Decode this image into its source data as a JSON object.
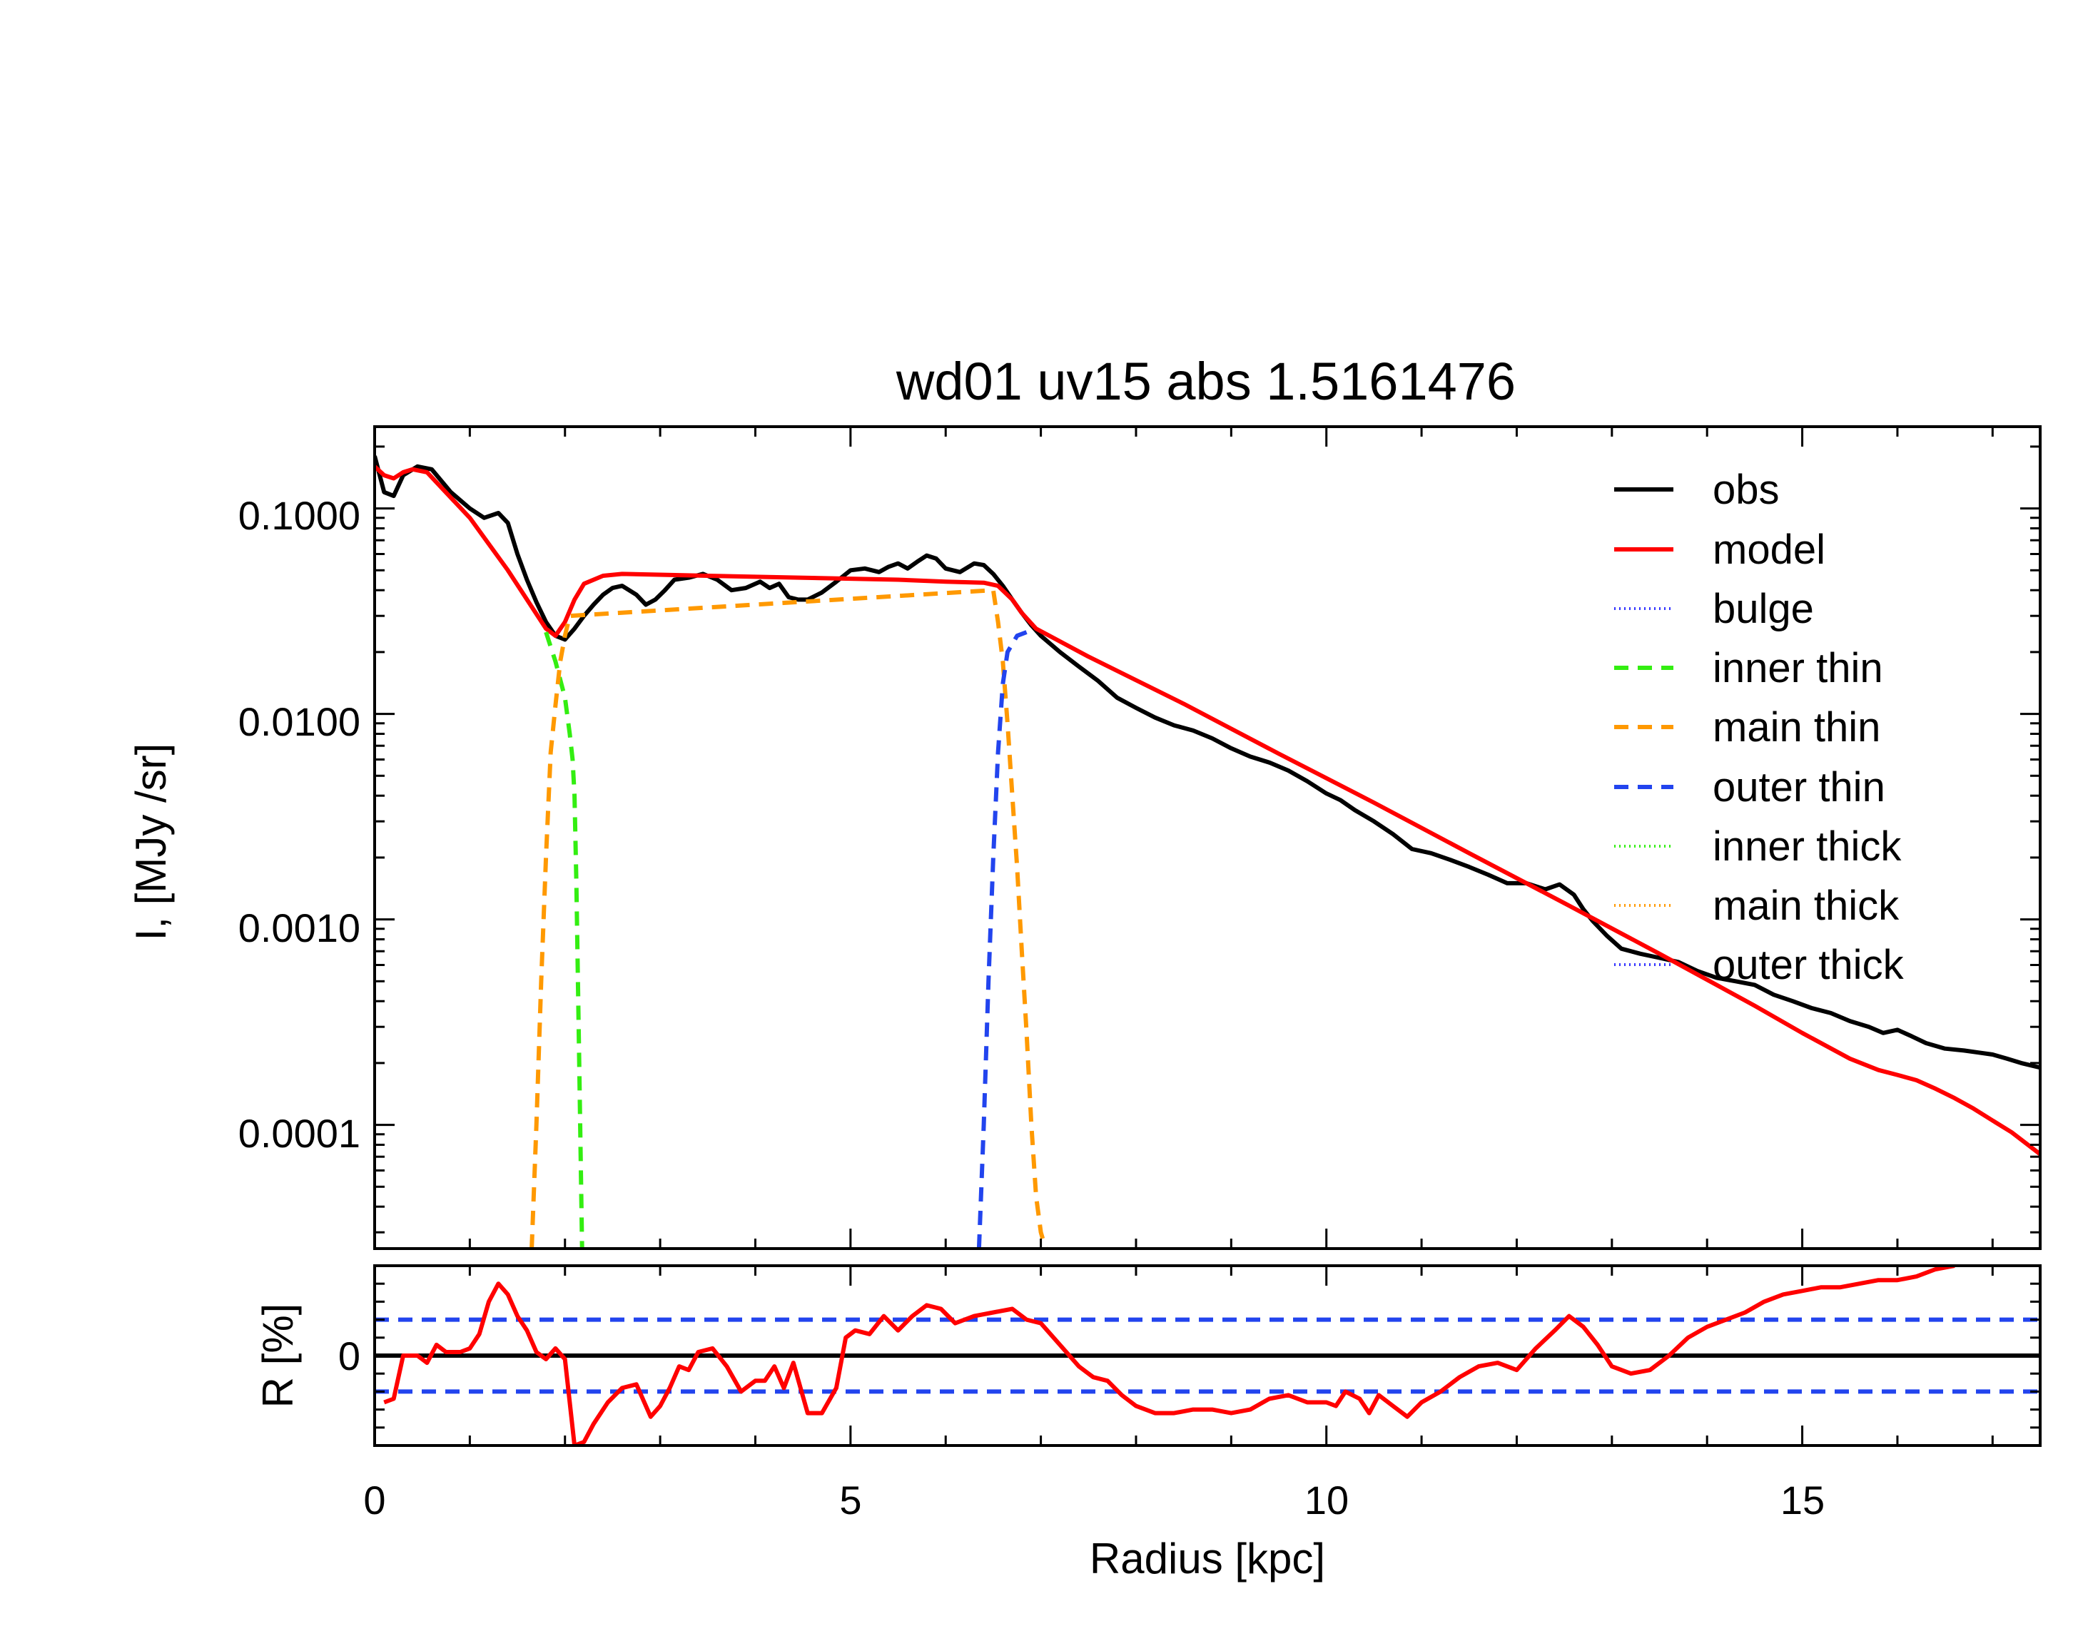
{
  "chart_data": [
    {
      "type": "line",
      "title": "wd01 uv15 abs 1.5161476",
      "xlabel": "",
      "ylabel": "I, [MJy /sr]",
      "xlim": [
        0,
        17.5
      ],
      "ylim": [
        2.5e-05,
        0.25
      ],
      "y_scale": "log",
      "x_ticks": [
        0,
        5,
        10,
        15
      ],
      "y_ticks": [
        0.0001,
        0.001,
        0.01,
        0.1
      ],
      "y_tick_labels": [
        "0.0001",
        "0.0010",
        "0.0100",
        "0.1000"
      ],
      "legend_position": "top-right",
      "grid": false,
      "series": [
        {
          "name": "obs",
          "color": "#000000",
          "style": "solid",
          "x": [
            0,
            0.1,
            0.2,
            0.3,
            0.45,
            0.6,
            0.8,
            1.0,
            1.15,
            1.3,
            1.4,
            1.5,
            1.6,
            1.7,
            1.8,
            1.9,
            2.0,
            2.1,
            2.2,
            2.3,
            2.4,
            2.5,
            2.6,
            2.75,
            2.85,
            2.95,
            3.05,
            3.15,
            3.3,
            3.45,
            3.6,
            3.75,
            3.9,
            4.05,
            4.15,
            4.25,
            4.35,
            4.45,
            4.55,
            4.7,
            4.85,
            5.0,
            5.15,
            5.3,
            5.4,
            5.5,
            5.6,
            5.7,
            5.8,
            5.9,
            6.0,
            6.15,
            6.3,
            6.4,
            6.5,
            6.6,
            6.7,
            6.8,
            6.9,
            7.0,
            7.2,
            7.4,
            7.6,
            7.8,
            8.0,
            8.2,
            8.4,
            8.6,
            8.8,
            9.0,
            9.2,
            9.4,
            9.6,
            9.8,
            10.0,
            10.15,
            10.3,
            10.5,
            10.7,
            10.9,
            11.1,
            11.3,
            11.5,
            11.7,
            11.9,
            12.1,
            12.3,
            12.45,
            12.6,
            12.7,
            12.8,
            12.95,
            13.1,
            13.3,
            13.5,
            13.7,
            13.9,
            14.1,
            14.3,
            14.5,
            14.7,
            14.9,
            15.1,
            15.3,
            15.5,
            15.7,
            15.85,
            16.0,
            16.15,
            16.3,
            16.5,
            16.7,
            16.85,
            17.0,
            17.15,
            17.3,
            17.5
          ],
          "y": [
            0.18,
            0.12,
            0.115,
            0.145,
            0.16,
            0.155,
            0.12,
            0.1,
            0.09,
            0.095,
            0.085,
            0.06,
            0.045,
            0.035,
            0.028,
            0.024,
            0.023,
            0.026,
            0.03,
            0.034,
            0.038,
            0.041,
            0.042,
            0.038,
            0.034,
            0.036,
            0.04,
            0.045,
            0.046,
            0.048,
            0.045,
            0.04,
            0.041,
            0.044,
            0.041,
            0.043,
            0.037,
            0.036,
            0.036,
            0.039,
            0.044,
            0.05,
            0.051,
            0.049,
            0.052,
            0.054,
            0.051,
            0.055,
            0.059,
            0.057,
            0.051,
            0.049,
            0.054,
            0.053,
            0.048,
            0.042,
            0.036,
            0.031,
            0.027,
            0.024,
            0.02,
            0.017,
            0.0145,
            0.012,
            0.0107,
            0.0096,
            0.0088,
            0.0083,
            0.0076,
            0.0068,
            0.0062,
            0.0058,
            0.0053,
            0.0047,
            0.0041,
            0.0038,
            0.0034,
            0.003,
            0.0026,
            0.0022,
            0.0021,
            0.00195,
            0.0018,
            0.00165,
            0.0015,
            0.0015,
            0.0014,
            0.00148,
            0.00132,
            0.00112,
            0.00098,
            0.00083,
            0.00072,
            0.00068,
            0.00065,
            0.00062,
            0.00056,
            0.00052,
            0.0005,
            0.00048,
            0.00043,
            0.0004,
            0.00037,
            0.00035,
            0.00032,
            0.0003,
            0.00028,
            0.00029,
            0.00027,
            0.00025,
            0.000235,
            0.00023,
            0.000225,
            0.00022,
            0.00021,
            0.0002,
            0.00019
          ]
        },
        {
          "name": "model",
          "color": "#ff0000",
          "style": "solid",
          "x": [
            0,
            0.1,
            0.2,
            0.3,
            0.4,
            0.55,
            1.0,
            1.4,
            1.8,
            1.9,
            2.0,
            2.1,
            2.2,
            2.4,
            2.6,
            3.5,
            4.5,
            5.5,
            6.0,
            6.4,
            6.55,
            6.7,
            6.8,
            6.95,
            7.5,
            8.5,
            9.5,
            10.5,
            11.5,
            12.5,
            13.5,
            14.5,
            15.0,
            15.5,
            15.8,
            16.0,
            16.2,
            16.4,
            16.6,
            16.8,
            17.0,
            17.2,
            17.5
          ],
          "y": [
            0.16,
            0.145,
            0.14,
            0.15,
            0.155,
            0.15,
            0.09,
            0.05,
            0.026,
            0.024,
            0.028,
            0.036,
            0.043,
            0.047,
            0.048,
            0.047,
            0.046,
            0.045,
            0.044,
            0.0435,
            0.042,
            0.036,
            0.031,
            0.026,
            0.019,
            0.0112,
            0.0064,
            0.0037,
            0.0021,
            0.0012,
            0.00068,
            0.00038,
            0.00028,
            0.00021,
            0.000185,
            0.000175,
            0.000165,
            0.00015,
            0.000135,
            0.00012,
            0.000105,
            9.2e-05,
            7.2e-05
          ]
        },
        {
          "name": "bulge",
          "color": "#3333ff",
          "style": "dotted",
          "x": [],
          "y": []
        },
        {
          "name": "inner thin",
          "color": "#33ee11",
          "style": "dashed",
          "x": [
            1.8,
            1.9,
            2.0,
            2.05,
            2.08,
            2.1,
            2.12,
            2.15,
            2.18
          ],
          "y": [
            0.025,
            0.018,
            0.012,
            0.008,
            0.006,
            0.004,
            0.0015,
            0.0002,
            2.5e-05
          ]
        },
        {
          "name": "main thin",
          "color": "#ff9900",
          "style": "dashed",
          "x": [
            1.65,
            1.7,
            1.75,
            1.8,
            1.85,
            1.9,
            1.95,
            2.0,
            2.05,
            6.5,
            6.55,
            6.6,
            6.65,
            6.7,
            6.75,
            6.8,
            6.85,
            6.9,
            6.95,
            7.0,
            7.05
          ],
          "y": [
            2.5e-05,
            0.0001,
            0.0005,
            0.002,
            0.0065,
            0.011,
            0.018,
            0.024,
            0.03,
            0.04,
            0.028,
            0.018,
            0.009,
            0.004,
            0.0018,
            0.0007,
            0.00028,
            0.0001,
            4.5e-05,
            3e-05,
            2.5e-05
          ]
        },
        {
          "name": "outer thin",
          "color": "#2244ee",
          "style": "dashed",
          "x": [
            6.35,
            6.4,
            6.45,
            6.5,
            6.55,
            6.6,
            6.65,
            6.75,
            6.85
          ],
          "y": [
            2.5e-05,
            0.0001,
            0.0005,
            0.002,
            0.0065,
            0.014,
            0.02,
            0.024,
            0.025
          ]
        },
        {
          "name": "inner thick",
          "color": "#33ee11",
          "style": "dotted",
          "x": [],
          "y": []
        },
        {
          "name": "main thick",
          "color": "#ff9900",
          "style": "dotted",
          "x": [],
          "y": []
        },
        {
          "name": "outer thick",
          "color": "#3333ff",
          "style": "dotted",
          "x": [],
          "y": []
        }
      ]
    },
    {
      "type": "line",
      "title": "",
      "xlabel": "Radius  [kpc]",
      "ylabel": "R [%]",
      "xlim": [
        0,
        17.5
      ],
      "ylim": [
        -25,
        25
      ],
      "x_ticks": [
        0,
        5,
        10,
        15
      ],
      "x_tick_labels": [
        "0",
        "5",
        "10",
        "15"
      ],
      "y_ticks": [
        0
      ],
      "y_tick_labels": [
        "0"
      ],
      "grid": false,
      "reference_lines": [
        {
          "y": 0,
          "color": "#000000",
          "style": "solid"
        },
        {
          "y": 10,
          "color": "#2244ee",
          "style": "dashed"
        },
        {
          "y": -10,
          "color": "#2244ee",
          "style": "dashed"
        }
      ],
      "series": [
        {
          "name": "",
          "color": "#ff0000",
          "style": "solid",
          "x": [
            0.1,
            0.2,
            0.3,
            0.45,
            0.55,
            0.65,
            0.75,
            0.9,
            1.0,
            1.1,
            1.2,
            1.3,
            1.4,
            1.5,
            1.6,
            1.7,
            1.8,
            1.9,
            2.0,
            2.1,
            2.2,
            2.3,
            2.45,
            2.6,
            2.75,
            2.9,
            3.0,
            3.1,
            3.2,
            3.3,
            3.4,
            3.55,
            3.7,
            3.85,
            4.0,
            4.1,
            4.2,
            4.3,
            4.4,
            4.55,
            4.7,
            4.85,
            4.95,
            5.05,
            5.2,
            5.35,
            5.5,
            5.65,
            5.8,
            5.95,
            6.1,
            6.3,
            6.5,
            6.7,
            6.85,
            7.0,
            7.2,
            7.4,
            7.55,
            7.7,
            7.85,
            8.0,
            8.2,
            8.4,
            8.6,
            8.8,
            9.0,
            9.2,
            9.4,
            9.6,
            9.8,
            10.0,
            10.1,
            10.2,
            10.35,
            10.45,
            10.55,
            10.7,
            10.85,
            11.0,
            11.2,
            11.4,
            11.6,
            11.8,
            12.0,
            12.2,
            12.4,
            12.55,
            12.7,
            12.85,
            13.0,
            13.2,
            13.4,
            13.6,
            13.8,
            14.0,
            14.2,
            14.4,
            14.6,
            14.8,
            15.0,
            15.2,
            15.4,
            15.6,
            15.8,
            16.0,
            16.2,
            16.4,
            16.6
          ],
          "y": [
            -13,
            -12,
            0,
            0,
            -2,
            3,
            1,
            1,
            2,
            6,
            15,
            20,
            17,
            11,
            7,
            1,
            -1,
            2,
            -1,
            -25,
            -24,
            -19,
            -13,
            -9,
            -8,
            -17,
            -14,
            -9,
            -3,
            -4,
            1,
            2,
            -3,
            -10,
            -7,
            -7,
            -3,
            -9,
            -2,
            -16,
            -16,
            -9,
            5,
            7,
            6,
            11,
            7,
            11,
            14,
            13,
            9,
            11,
            12,
            13,
            10,
            9,
            3,
            -3,
            -6,
            -7,
            -11,
            -14,
            -16,
            -16,
            -15,
            -15,
            -16,
            -15,
            -12,
            -11,
            -13,
            -13,
            -14,
            -10,
            -12,
            -16,
            -11,
            -14,
            -17,
            -13,
            -10,
            -6,
            -3,
            -2,
            -4,
            2,
            7,
            11,
            8,
            3,
            -3,
            -5,
            -4,
            0,
            5,
            8,
            10,
            12,
            15,
            17,
            18,
            19,
            19,
            20,
            21,
            21,
            22,
            24,
            25
          ]
        }
      ]
    }
  ]
}
